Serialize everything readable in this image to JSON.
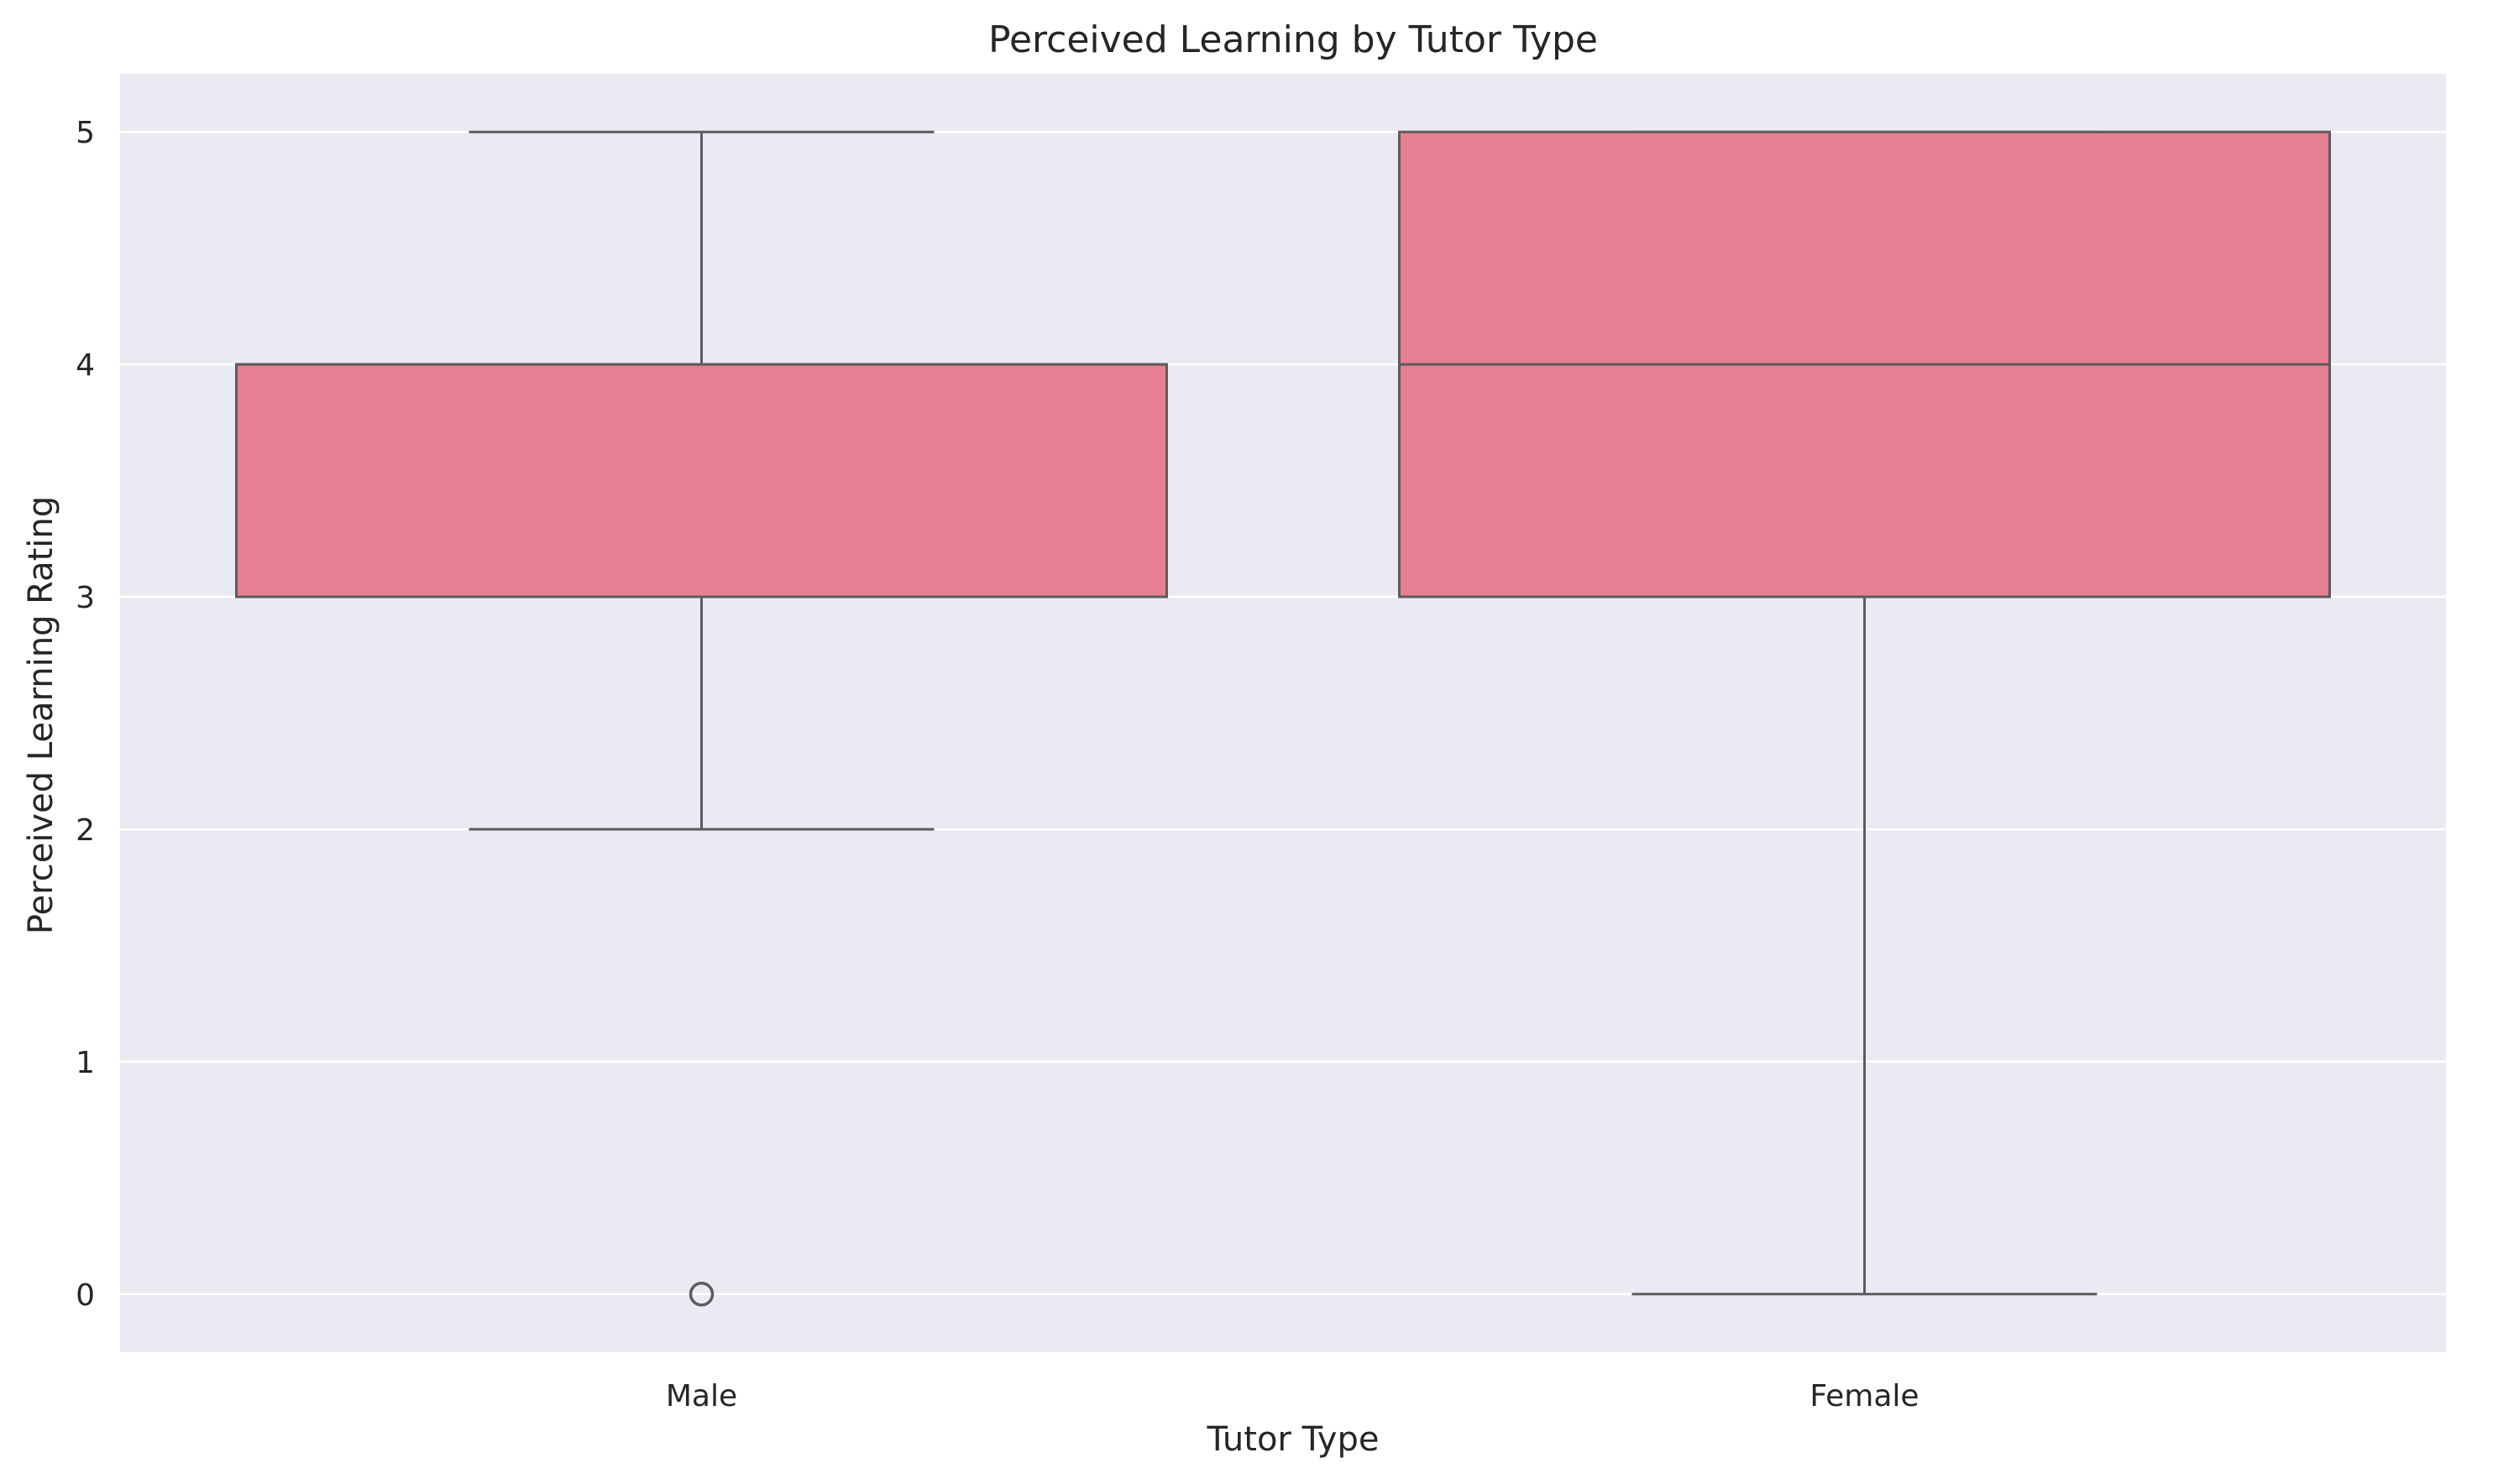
{
  "chart_data": {
    "type": "box",
    "title": "Perceived Learning by Tutor Type",
    "xlabel": "Tutor Type",
    "ylabel": "Perceived Learning Rating",
    "categories": [
      "Male",
      "Female"
    ],
    "yticks": [
      0,
      1,
      2,
      3,
      4,
      5
    ],
    "ylim": [
      -0.25,
      5.25
    ],
    "grid": true,
    "boxes": [
      {
        "category": "Male",
        "whisker_low": 2,
        "q1": 3,
        "median": 4,
        "q3": 4,
        "whisker_high": 5,
        "outliers": [
          0
        ]
      },
      {
        "category": "Female",
        "whisker_low": 0,
        "q1": 3,
        "median": 4,
        "q3": 5,
        "whisker_high": 5,
        "outliers": []
      }
    ],
    "colors": {
      "background": "#eaeaf2",
      "box_fill": "#e77f92",
      "box_line": "#5c5c5c",
      "grid": "#ffffff",
      "text": "#262626"
    }
  }
}
